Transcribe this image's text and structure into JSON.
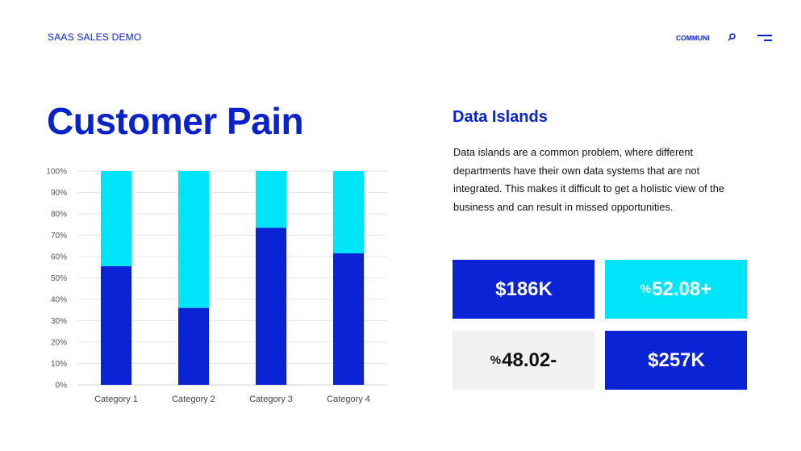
{
  "header": {
    "brand": "SAAS SALES DEMO",
    "nav_link": "COMMUNI",
    "search_icon": "search-icon",
    "menu_icon": "menu-icon"
  },
  "page": {
    "title": "Customer Pain"
  },
  "section": {
    "title": "Data Islands",
    "description": "Data islands are a common problem, where different departments have their own data systems that are not integrated. This makes it difficult to get a holistic view of the business and can result in missed opportunities."
  },
  "kpis": [
    {
      "prefix": "",
      "value": "$186K"
    },
    {
      "prefix": "%",
      "value": "52.08+"
    },
    {
      "prefix": "%",
      "value": "48.02-"
    },
    {
      "prefix": "",
      "value": "$257K"
    }
  ],
  "colors": {
    "primary": "#0a23d4",
    "accent": "#00e4fa",
    "neutral": "#f1f1f1"
  },
  "chart_data": {
    "type": "bar",
    "stacked": true,
    "percent": true,
    "categories": [
      "Category 1",
      "Category 2",
      "Category 3",
      "Category 4"
    ],
    "series": [
      {
        "values": [
          55.5,
          36,
          73.5,
          61.5
        ],
        "color": "#0a23d4"
      },
      {
        "values": [
          44.5,
          64,
          26.5,
          38.5
        ],
        "color": "#00e4fa"
      }
    ],
    "ylim": [
      0,
      100
    ],
    "yticks": [
      "0%",
      "10%",
      "20%",
      "30%",
      "40%",
      "50%",
      "60%",
      "70%",
      "80%",
      "90%",
      "100%"
    ],
    "grid": true,
    "legend": "none"
  }
}
